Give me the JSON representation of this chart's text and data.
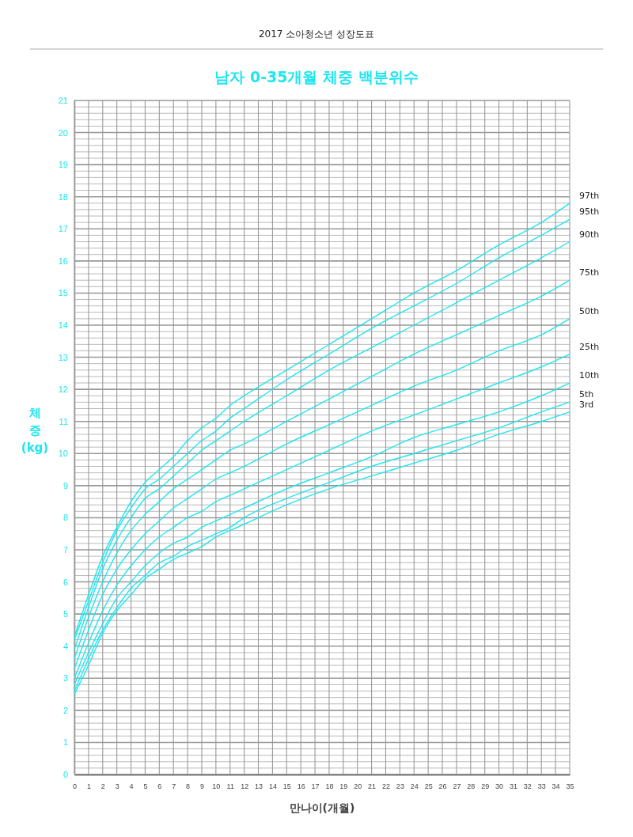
{
  "chart_data": {
    "type": "line",
    "title": "남자 0-35개월 체중 백분위수",
    "annotations": [
      "2017 소아청소년 성장도표"
    ],
    "xlabel": "만나이(개월)",
    "ylabel": "체\n중\n(kg)",
    "x": [
      0,
      1,
      2,
      3,
      4,
      5,
      6,
      7,
      8,
      9,
      10,
      11,
      12,
      15,
      18,
      21,
      24,
      27,
      30,
      33,
      35
    ],
    "xlim": [
      0,
      35
    ],
    "xticks": [
      0,
      1,
      2,
      3,
      4,
      5,
      6,
      7,
      8,
      9,
      10,
      11,
      12,
      13,
      14,
      15,
      16,
      17,
      18,
      19,
      20,
      21,
      22,
      23,
      24,
      25,
      26,
      27,
      28,
      29,
      30,
      31,
      32,
      33,
      34,
      35
    ],
    "ylim": [
      0,
      21
    ],
    "yticks": [
      0,
      1,
      2,
      3,
      4,
      5,
      6,
      7,
      8,
      9,
      10,
      11,
      12,
      13,
      14,
      15,
      16,
      17,
      18,
      19,
      20,
      21
    ],
    "grid": true,
    "marker": "none",
    "line_style": "solid",
    "legend": false,
    "series": [
      {
        "name": "97th",
        "color": "#1ee6f0",
        "values": [
          4.3,
          5.6,
          6.8,
          7.7,
          8.5,
          9.1,
          9.5,
          9.9,
          10.4,
          10.8,
          11.1,
          11.5,
          11.8,
          12.6,
          13.4,
          14.2,
          15.0,
          15.7,
          16.5,
          17.2,
          17.8
        ]
      },
      {
        "name": "95th",
        "color": "#1ee6f0",
        "values": [
          4.2,
          5.4,
          6.6,
          7.6,
          8.3,
          8.9,
          9.2,
          9.6,
          10.0,
          10.4,
          10.7,
          11.1,
          11.4,
          12.3,
          13.1,
          13.9,
          14.6,
          15.3,
          16.1,
          16.8,
          17.3
        ]
      },
      {
        "name": "90th",
        "color": "#1ee6f0",
        "values": [
          3.9,
          5.2,
          6.4,
          7.3,
          8.0,
          8.6,
          8.9,
          9.3,
          9.7,
          10.1,
          10.4,
          10.7,
          11.0,
          11.8,
          12.6,
          13.3,
          14.0,
          14.7,
          15.4,
          16.1,
          16.6
        ]
      },
      {
        "name": "75th",
        "color": "#1ee6f0",
        "values": [
          3.6,
          4.9,
          6.0,
          6.9,
          7.6,
          8.1,
          8.5,
          8.9,
          9.2,
          9.5,
          9.8,
          10.1,
          10.3,
          11.0,
          11.7,
          12.4,
          13.1,
          13.7,
          14.3,
          14.9,
          15.4
        ]
      },
      {
        "name": "50th",
        "color": "#1ee6f0",
        "values": [
          3.3,
          4.5,
          5.6,
          6.4,
          7.0,
          7.5,
          7.9,
          8.3,
          8.6,
          8.9,
          9.2,
          9.4,
          9.6,
          10.3,
          10.9,
          11.5,
          12.1,
          12.6,
          13.2,
          13.7,
          14.2
        ]
      },
      {
        "name": "25th",
        "color": "#1ee6f0",
        "values": [
          3.0,
          4.1,
          5.1,
          5.9,
          6.5,
          7.0,
          7.4,
          7.7,
          8.0,
          8.2,
          8.5,
          8.7,
          8.9,
          9.5,
          10.1,
          10.7,
          11.2,
          11.7,
          12.2,
          12.7,
          13.1
        ]
      },
      {
        "name": "10th",
        "color": "#1ee6f0",
        "values": [
          2.8,
          3.8,
          4.7,
          5.5,
          6.0,
          6.5,
          6.9,
          7.2,
          7.4,
          7.7,
          7.9,
          8.1,
          8.3,
          8.9,
          9.4,
          9.9,
          10.5,
          10.9,
          11.3,
          11.8,
          12.2
        ]
      },
      {
        "name": "5th",
        "color": "#1ee6f0",
        "values": [
          2.6,
          3.6,
          4.5,
          5.2,
          5.8,
          6.2,
          6.6,
          6.8,
          7.1,
          7.3,
          7.5,
          7.7,
          8.0,
          8.6,
          9.1,
          9.6,
          10.0,
          10.4,
          10.8,
          11.3,
          11.6
        ]
      },
      {
        "name": "3rd",
        "color": "#1ee6f0",
        "values": [
          2.5,
          3.4,
          4.4,
          5.1,
          5.6,
          6.1,
          6.4,
          6.7,
          6.9,
          7.1,
          7.4,
          7.6,
          7.8,
          8.4,
          8.9,
          9.3,
          9.7,
          10.1,
          10.6,
          11.0,
          11.3
        ]
      }
    ]
  }
}
